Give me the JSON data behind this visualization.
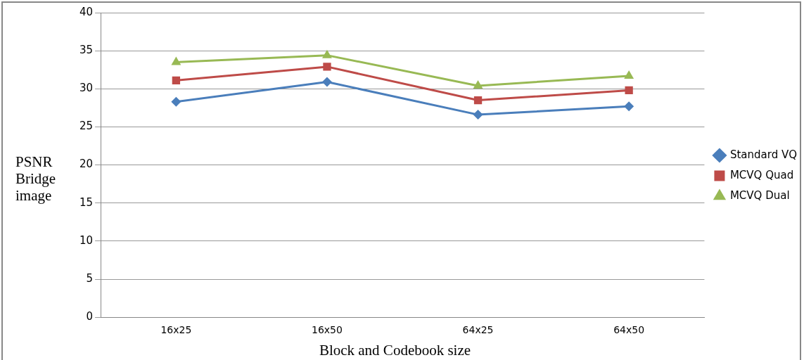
{
  "chart_data": {
    "type": "line",
    "xlabel": "Block and Codebook size",
    "ylabel": "PSNR Bridge image",
    "categories": [
      "16x25",
      "16x50",
      "64x25",
      "64x50"
    ],
    "series": [
      {
        "name": "Standard VQ",
        "color": "#4a7ebb",
        "marker": "diamond",
        "values": [
          28.3,
          30.9,
          26.6,
          27.7
        ]
      },
      {
        "name": "MCVQ Quad",
        "color": "#be4b48",
        "marker": "square",
        "values": [
          31.1,
          32.9,
          28.5,
          29.8
        ]
      },
      {
        "name": "MCVQ Dual",
        "color": "#98b954",
        "marker": "triangle",
        "values": [
          33.5,
          34.4,
          30.4,
          31.7
        ]
      }
    ],
    "ylim": [
      0,
      40
    ],
    "yticks": [
      0,
      5,
      10,
      15,
      20,
      25,
      30,
      35,
      40
    ],
    "grid": "y",
    "legend": "right"
  }
}
